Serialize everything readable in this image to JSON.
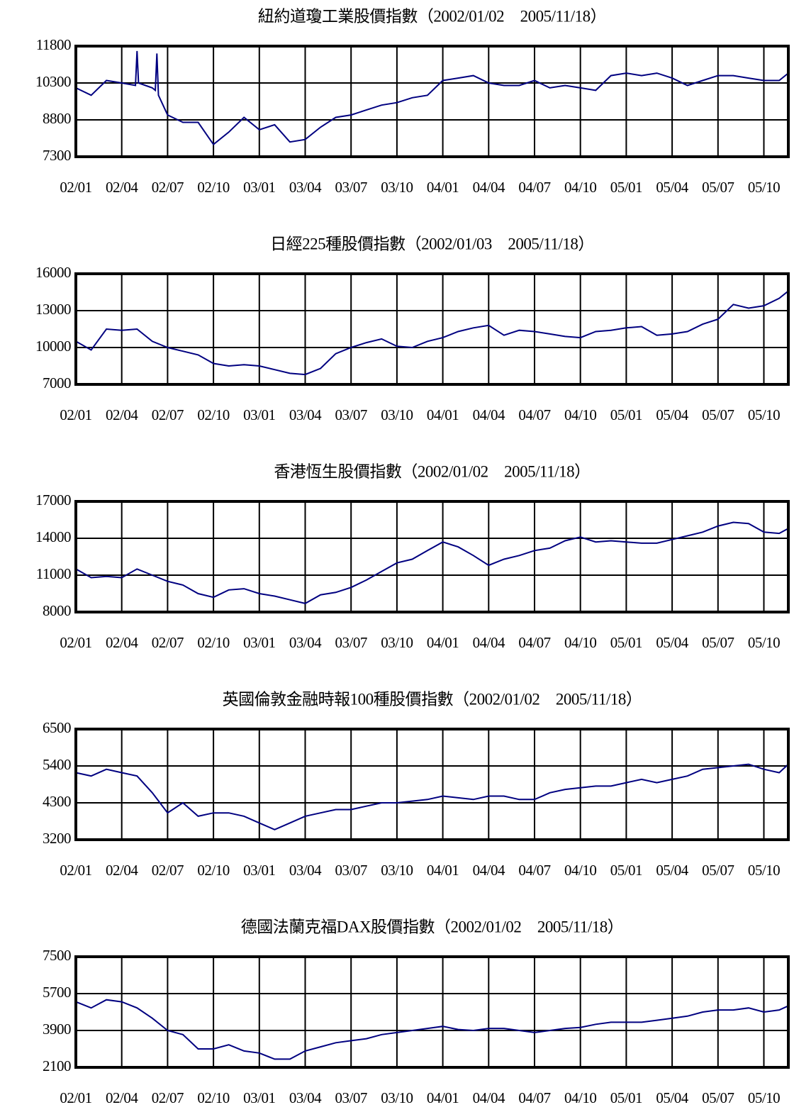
{
  "chart_data": [
    {
      "type": "line",
      "title": "紐約道瓊工業股價指數（2002/01/02　2005/11/18）",
      "xlim": [
        0,
        46.6
      ],
      "xticks": [
        {
          "value": 0,
          "label": "02/01"
        },
        {
          "value": 3,
          "label": "02/04"
        },
        {
          "value": 6,
          "label": "02/07"
        },
        {
          "value": 9,
          "label": "02/10"
        },
        {
          "value": 12,
          "label": "03/01"
        },
        {
          "value": 15,
          "label": "03/04"
        },
        {
          "value": 18,
          "label": "03/07"
        },
        {
          "value": 21,
          "label": "03/10"
        },
        {
          "value": 24,
          "label": "04/01"
        },
        {
          "value": 27,
          "label": "04/04"
        },
        {
          "value": 30,
          "label": "04/07"
        },
        {
          "value": 33,
          "label": "04/10"
        },
        {
          "value": 36,
          "label": "05/01"
        },
        {
          "value": 39,
          "label": "05/04"
        },
        {
          "value": 42,
          "label": "05/07"
        },
        {
          "value": 45,
          "label": "05/10"
        }
      ],
      "ylim": [
        7300,
        11800
      ],
      "yticks": [
        7300,
        8800,
        10300,
        11800
      ],
      "grid": true,
      "series": [
        {
          "color": "#000080",
          "x": [
            0,
            1,
            2,
            3,
            3.9,
            4,
            4.1,
            5,
            5.2,
            5.3,
            5.4,
            6,
            7,
            8,
            9,
            10,
            11,
            12,
            13,
            14,
            15,
            16,
            17,
            18,
            19,
            20,
            21,
            22,
            23,
            24,
            25,
            26,
            27,
            28,
            29,
            30,
            31,
            32,
            33,
            34,
            35,
            36,
            37,
            38,
            39,
            40,
            41,
            42,
            43,
            44,
            45,
            46,
            46.6
          ],
          "values": [
            10100,
            9800,
            10400,
            10300,
            10200,
            11600,
            10300,
            10100,
            10000,
            11500,
            9800,
            9000,
            8700,
            8700,
            7800,
            8300,
            8900,
            8400,
            8600,
            7900,
            8000,
            8500,
            8900,
            9000,
            9200,
            9400,
            9500,
            9700,
            9800,
            10400,
            10500,
            10600,
            10300,
            10200,
            10200,
            10400,
            10100,
            10200,
            10100,
            10000,
            10600,
            10700,
            10600,
            10700,
            10500,
            10200,
            10400,
            10600,
            10600,
            10500,
            10400,
            10400,
            10700
          ]
        }
      ]
    },
    {
      "type": "line",
      "title": "日經225種股價指數（2002/01/03　2005/11/18）",
      "xlim": [
        0,
        46.6
      ],
      "xticks": [
        {
          "value": 0,
          "label": "02/01"
        },
        {
          "value": 3,
          "label": "02/04"
        },
        {
          "value": 6,
          "label": "02/07"
        },
        {
          "value": 9,
          "label": "02/10"
        },
        {
          "value": 12,
          "label": "03/01"
        },
        {
          "value": 15,
          "label": "03/04"
        },
        {
          "value": 18,
          "label": "03/07"
        },
        {
          "value": 21,
          "label": "03/10"
        },
        {
          "value": 24,
          "label": "04/01"
        },
        {
          "value": 27,
          "label": "04/04"
        },
        {
          "value": 30,
          "label": "04/07"
        },
        {
          "value": 33,
          "label": "04/10"
        },
        {
          "value": 36,
          "label": "05/01"
        },
        {
          "value": 39,
          "label": "05/04"
        },
        {
          "value": 42,
          "label": "05/07"
        },
        {
          "value": 45,
          "label": "05/10"
        }
      ],
      "ylim": [
        7000,
        16000
      ],
      "yticks": [
        7000,
        10000,
        13000,
        16000
      ],
      "grid": true,
      "series": [
        {
          "color": "#000080",
          "x": [
            0,
            1,
            2,
            3,
            4,
            5,
            6,
            7,
            8,
            9,
            10,
            11,
            12,
            13,
            14,
            15,
            16,
            17,
            18,
            19,
            20,
            21,
            22,
            23,
            24,
            25,
            26,
            27,
            28,
            29,
            30,
            31,
            32,
            33,
            34,
            35,
            36,
            37,
            38,
            39,
            40,
            41,
            42,
            43,
            44,
            45,
            46,
            46.6
          ],
          "values": [
            10500,
            9800,
            11500,
            11400,
            11500,
            10500,
            10000,
            9700,
            9400,
            8700,
            8500,
            8600,
            8500,
            8200,
            7900,
            7800,
            8300,
            9500,
            10000,
            10400,
            10700,
            10100,
            10000,
            10500,
            10800,
            11300,
            11600,
            11800,
            11000,
            11400,
            11300,
            11100,
            10900,
            10800,
            11300,
            11400,
            11600,
            11700,
            11000,
            11100,
            11300,
            11900,
            12300,
            13500,
            13200,
            13400,
            14000,
            14600
          ]
        }
      ]
    },
    {
      "type": "line",
      "title": "香港恆生股價指數（2002/01/02　2005/11/18）",
      "xlim": [
        0,
        46.6
      ],
      "xticks": [
        {
          "value": 0,
          "label": "02/01"
        },
        {
          "value": 3,
          "label": "02/04"
        },
        {
          "value": 6,
          "label": "02/07"
        },
        {
          "value": 9,
          "label": "02/10"
        },
        {
          "value": 12,
          "label": "03/01"
        },
        {
          "value": 15,
          "label": "03/04"
        },
        {
          "value": 18,
          "label": "03/07"
        },
        {
          "value": 21,
          "label": "03/10"
        },
        {
          "value": 24,
          "label": "04/01"
        },
        {
          "value": 27,
          "label": "04/04"
        },
        {
          "value": 30,
          "label": "04/07"
        },
        {
          "value": 33,
          "label": "04/10"
        },
        {
          "value": 36,
          "label": "05/01"
        },
        {
          "value": 39,
          "label": "05/04"
        },
        {
          "value": 42,
          "label": "05/07"
        },
        {
          "value": 45,
          "label": "05/10"
        }
      ],
      "ylim": [
        8000,
        17000
      ],
      "yticks": [
        8000,
        11000,
        14000,
        17000
      ],
      "grid": true,
      "series": [
        {
          "color": "#000080",
          "x": [
            0,
            1,
            2,
            3,
            4,
            5,
            6,
            7,
            8,
            9,
            10,
            11,
            12,
            13,
            14,
            15,
            16,
            17,
            18,
            19,
            20,
            21,
            22,
            23,
            24,
            25,
            26,
            27,
            28,
            29,
            30,
            31,
            32,
            33,
            34,
            35,
            36,
            37,
            38,
            39,
            40,
            41,
            42,
            43,
            44,
            45,
            46,
            46.6
          ],
          "values": [
            11500,
            10800,
            10900,
            10800,
            11500,
            11000,
            10500,
            10200,
            9500,
            9200,
            9800,
            9900,
            9500,
            9300,
            9000,
            8700,
            9400,
            9600,
            10000,
            10600,
            11300,
            12000,
            12300,
            13000,
            13700,
            13300,
            12600,
            11800,
            12300,
            12600,
            13000,
            13200,
            13800,
            14100,
            13700,
            13800,
            13700,
            13600,
            13600,
            13900,
            14200,
            14500,
            15000,
            15300,
            15200,
            14500,
            14400,
            14800
          ]
        }
      ]
    },
    {
      "type": "line",
      "title": "英國倫敦金融時報100種股價指數（2002/01/02　2005/11/18）",
      "xlim": [
        0,
        46.6
      ],
      "xticks": [
        {
          "value": 0,
          "label": "02/01"
        },
        {
          "value": 3,
          "label": "02/04"
        },
        {
          "value": 6,
          "label": "02/07"
        },
        {
          "value": 9,
          "label": "02/10"
        },
        {
          "value": 12,
          "label": "03/01"
        },
        {
          "value": 15,
          "label": "03/04"
        },
        {
          "value": 18,
          "label": "03/07"
        },
        {
          "value": 21,
          "label": "03/10"
        },
        {
          "value": 24,
          "label": "04/01"
        },
        {
          "value": 27,
          "label": "04/04"
        },
        {
          "value": 30,
          "label": "04/07"
        },
        {
          "value": 33,
          "label": "04/10"
        },
        {
          "value": 36,
          "label": "05/01"
        },
        {
          "value": 39,
          "label": "05/04"
        },
        {
          "value": 42,
          "label": "05/07"
        },
        {
          "value": 45,
          "label": "05/10"
        }
      ],
      "ylim": [
        3200,
        6500
      ],
      "yticks": [
        3200,
        4300,
        5400,
        6500
      ],
      "grid": true,
      "series": [
        {
          "color": "#000080",
          "x": [
            0,
            1,
            2,
            3,
            4,
            5,
            6,
            7,
            8,
            9,
            10,
            11,
            12,
            13,
            14,
            15,
            16,
            17,
            18,
            19,
            20,
            21,
            22,
            23,
            24,
            25,
            26,
            27,
            28,
            29,
            30,
            31,
            32,
            33,
            34,
            35,
            36,
            37,
            38,
            39,
            40,
            41,
            42,
            43,
            44,
            45,
            46,
            46.6
          ],
          "values": [
            5200,
            5100,
            5300,
            5200,
            5100,
            4600,
            4000,
            4300,
            3900,
            4000,
            4000,
            3900,
            3700,
            3500,
            3700,
            3900,
            4000,
            4100,
            4100,
            4200,
            4300,
            4300,
            4350,
            4400,
            4500,
            4450,
            4400,
            4500,
            4500,
            4400,
            4400,
            4600,
            4700,
            4750,
            4800,
            4800,
            4900,
            5000,
            4900,
            5000,
            5100,
            5300,
            5350,
            5400,
            5450,
            5300,
            5200,
            5450
          ]
        }
      ]
    },
    {
      "type": "line",
      "title": "德國法蘭克福DAX股價指數（2002/01/02　2005/11/18）",
      "xlim": [
        0,
        46.6
      ],
      "xticks": [
        {
          "value": 0,
          "label": "02/01"
        },
        {
          "value": 3,
          "label": "02/04"
        },
        {
          "value": 6,
          "label": "02/07"
        },
        {
          "value": 9,
          "label": "02/10"
        },
        {
          "value": 12,
          "label": "03/01"
        },
        {
          "value": 15,
          "label": "03/04"
        },
        {
          "value": 18,
          "label": "03/07"
        },
        {
          "value": 21,
          "label": "03/10"
        },
        {
          "value": 24,
          "label": "04/01"
        },
        {
          "value": 27,
          "label": "04/04"
        },
        {
          "value": 30,
          "label": "04/07"
        },
        {
          "value": 33,
          "label": "04/10"
        },
        {
          "value": 36,
          "label": "05/01"
        },
        {
          "value": 39,
          "label": "05/04"
        },
        {
          "value": 42,
          "label": "05/07"
        },
        {
          "value": 45,
          "label": "05/10"
        }
      ],
      "ylim": [
        2100,
        7500
      ],
      "yticks": [
        2100,
        3900,
        5700,
        7500
      ],
      "grid": true,
      "series": [
        {
          "color": "#000080",
          "x": [
            0,
            1,
            2,
            3,
            4,
            5,
            6,
            7,
            8,
            9,
            10,
            11,
            12,
            13,
            14,
            15,
            16,
            17,
            18,
            19,
            20,
            21,
            22,
            23,
            24,
            25,
            26,
            27,
            28,
            29,
            30,
            31,
            32,
            33,
            34,
            35,
            36,
            37,
            38,
            39,
            40,
            41,
            42,
            43,
            44,
            45,
            46,
            46.6
          ],
          "values": [
            5300,
            5000,
            5400,
            5300,
            5000,
            4500,
            3900,
            3700,
            3000,
            3000,
            3200,
            2900,
            2800,
            2500,
            2500,
            2900,
            3100,
            3300,
            3400,
            3500,
            3700,
            3800,
            3900,
            4000,
            4100,
            3950,
            3900,
            4000,
            4000,
            3900,
            3800,
            3900,
            4000,
            4050,
            4200,
            4300,
            4300,
            4300,
            4400,
            4500,
            4600,
            4800,
            4900,
            4900,
            5000,
            4800,
            4900,
            5100
          ]
        }
      ]
    }
  ]
}
